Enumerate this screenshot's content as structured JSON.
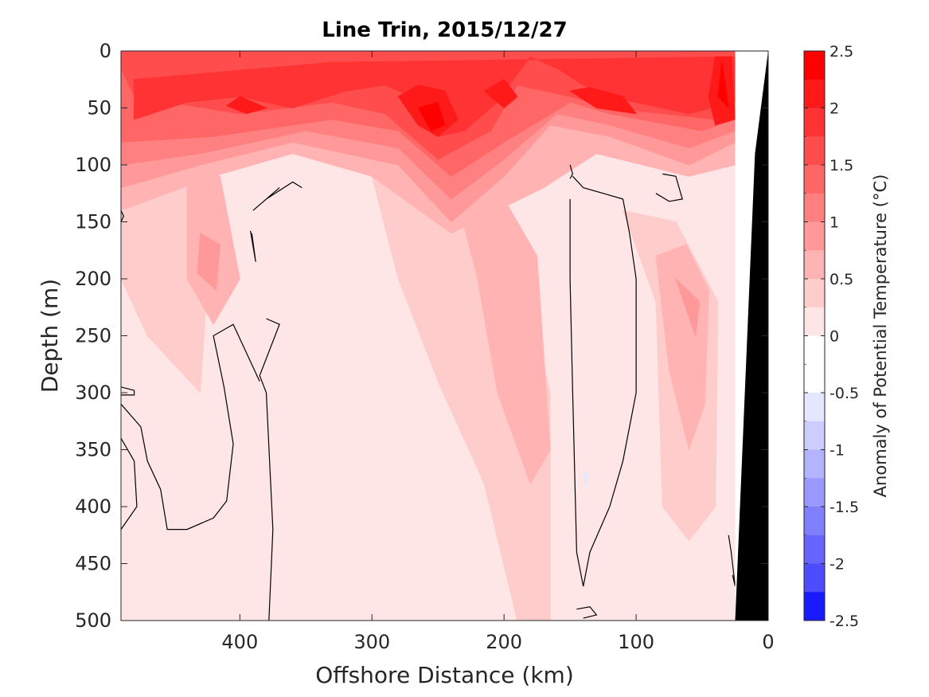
{
  "chart_data": {
    "type": "heatmap",
    "title": "Line Trin, 2015/12/27",
    "xlabel": "Offshore Distance (km)",
    "ylabel": "Depth (m)",
    "colorbar_label": "Anomaly of Potential Temperature (°C)",
    "xlim": [
      490,
      0
    ],
    "ylim": [
      0,
      500
    ],
    "x_ticks": [
      400,
      300,
      200,
      100,
      0
    ],
    "y_ticks": [
      0,
      50,
      100,
      150,
      200,
      250,
      300,
      350,
      400,
      450,
      500
    ],
    "clim": [
      -2.5,
      2.5
    ],
    "colorbar_ticks": [
      2.5,
      2,
      1.5,
      1,
      0.5,
      0,
      -0.5,
      -1,
      -1.5,
      -2,
      -2.5
    ],
    "colorbar_tick_labels": [
      "2.5",
      "2",
      "1.5",
      "1",
      "0.5",
      "0",
      "-0.5",
      "-1",
      "-1.5",
      "-2",
      "-2.5"
    ],
    "colorbar_levels": [
      {
        "lo": 2.25,
        "hi": 2.5,
        "color": "#ff0000"
      },
      {
        "lo": 2.0,
        "hi": 2.25,
        "color": "#ff1a1a"
      },
      {
        "lo": 1.75,
        "hi": 2.0,
        "color": "#ff3333"
      },
      {
        "lo": 1.5,
        "hi": 1.75,
        "color": "#ff4d4d"
      },
      {
        "lo": 1.25,
        "hi": 1.5,
        "color": "#ff6666"
      },
      {
        "lo": 1.0,
        "hi": 1.25,
        "color": "#ff8080"
      },
      {
        "lo": 0.75,
        "hi": 1.0,
        "color": "#ff9999"
      },
      {
        "lo": 0.5,
        "hi": 0.75,
        "color": "#ffb3b3"
      },
      {
        "lo": 0.25,
        "hi": 0.5,
        "color": "#ffcccc"
      },
      {
        "lo": 0.0,
        "hi": 0.25,
        "color": "#ffe6e6"
      },
      {
        "lo": -0.25,
        "hi": 0.0,
        "color": "#ffffff"
      },
      {
        "lo": -0.5,
        "hi": -0.25,
        "color": "#ffffff"
      },
      {
        "lo": -0.75,
        "hi": -0.5,
        "color": "#e6e6ff"
      },
      {
        "lo": -1.0,
        "hi": -0.75,
        "color": "#ccccff"
      },
      {
        "lo": -1.25,
        "hi": -1.0,
        "color": "#b3b3ff"
      },
      {
        "lo": -1.5,
        "hi": -1.25,
        "color": "#9999ff"
      },
      {
        "lo": -1.75,
        "hi": -1.5,
        "color": "#8080ff"
      },
      {
        "lo": -2.0,
        "hi": -1.75,
        "color": "#6666ff"
      },
      {
        "lo": -2.25,
        "hi": -2.0,
        "color": "#4d4dff"
      },
      {
        "lo": -2.5,
        "hi": -2.25,
        "color": "#1a1aff"
      }
    ],
    "field_regions": [
      {
        "level": 0.1,
        "points": [
          [
            490,
            0
          ],
          [
            25,
            0
          ],
          [
            25,
            500
          ],
          [
            490,
            500
          ]
        ]
      },
      {
        "level": 0.1,
        "points": [
          [
            280,
            160
          ],
          [
            255,
            250
          ],
          [
            250,
            330
          ],
          [
            240,
            480
          ],
          [
            200,
            500
          ],
          [
            170,
            500
          ],
          [
            185,
            360
          ],
          [
            190,
            180
          ],
          [
            230,
            150
          ]
        ]
      },
      {
        "level": 0.1,
        "points": [
          [
            90,
            250
          ],
          [
            100,
            350
          ],
          [
            95,
            500
          ],
          [
            40,
            500
          ],
          [
            35,
            300
          ],
          [
            50,
            220
          ]
        ]
      },
      {
        "level": 0.35,
        "points": [
          [
            490,
            100
          ],
          [
            420,
            120
          ],
          [
            430,
            300
          ],
          [
            470,
            250
          ],
          [
            490,
            200
          ]
        ]
      },
      {
        "level": 0.35,
        "points": [
          [
            300,
            110
          ],
          [
            280,
            200
          ],
          [
            250,
            290
          ],
          [
            215,
            380
          ],
          [
            190,
            500
          ],
          [
            165,
            500
          ],
          [
            165,
            300
          ],
          [
            190,
            180
          ],
          [
            240,
            130
          ]
        ]
      },
      {
        "level": 0.35,
        "points": [
          [
            110,
            140
          ],
          [
            85,
            220
          ],
          [
            80,
            400
          ],
          [
            60,
            430
          ],
          [
            40,
            400
          ],
          [
            38,
            220
          ],
          [
            70,
            150
          ]
        ]
      },
      {
        "level": 0.6,
        "points": [
          [
            440,
            100
          ],
          [
            415,
            110
          ],
          [
            400,
            200
          ],
          [
            420,
            240
          ],
          [
            440,
            200
          ]
        ]
      },
      {
        "level": 0.6,
        "points": [
          [
            240,
            110
          ],
          [
            220,
            200
          ],
          [
            205,
            300
          ],
          [
            180,
            380
          ],
          [
            165,
            350
          ],
          [
            175,
            180
          ],
          [
            200,
            130
          ]
        ]
      },
      {
        "level": 0.6,
        "points": [
          [
            85,
            180
          ],
          [
            75,
            280
          ],
          [
            60,
            350
          ],
          [
            48,
            310
          ],
          [
            45,
            210
          ],
          [
            62,
            170
          ]
        ]
      },
      {
        "level": 0.85,
        "points": [
          [
            430,
            160
          ],
          [
            415,
            170
          ],
          [
            418,
            210
          ],
          [
            432,
            195
          ]
        ]
      },
      {
        "level": 0.85,
        "points": [
          [
            70,
            200
          ],
          [
            55,
            250
          ],
          [
            52,
            220
          ]
        ]
      },
      {
        "level": 0.6,
        "points": [
          [
            490,
            0
          ],
          [
            25,
            0
          ],
          [
            25,
            100
          ],
          [
            60,
            110
          ],
          [
            130,
            90
          ],
          [
            170,
            120
          ],
          [
            240,
            160
          ],
          [
            300,
            110
          ],
          [
            360,
            90
          ],
          [
            420,
            110
          ],
          [
            490,
            140
          ]
        ]
      },
      {
        "level": 0.85,
        "points": [
          [
            490,
            0
          ],
          [
            25,
            0
          ],
          [
            25,
            80
          ],
          [
            60,
            100
          ],
          [
            120,
            75
          ],
          [
            165,
            65
          ],
          [
            200,
            110
          ],
          [
            240,
            150
          ],
          [
            280,
            100
          ],
          [
            360,
            80
          ],
          [
            430,
            100
          ],
          [
            490,
            120
          ]
        ]
      },
      {
        "level": 1.1,
        "points": [
          [
            490,
            0
          ],
          [
            25,
            0
          ],
          [
            25,
            70
          ],
          [
            60,
            85
          ],
          [
            120,
            65
          ],
          [
            160,
            55
          ],
          [
            200,
            95
          ],
          [
            240,
            130
          ],
          [
            280,
            85
          ],
          [
            350,
            70
          ],
          [
            430,
            90
          ],
          [
            490,
            100
          ]
        ]
      },
      {
        "level": 1.35,
        "points": [
          [
            490,
            0
          ],
          [
            25,
            0
          ],
          [
            25,
            60
          ],
          [
            50,
            70
          ],
          [
            120,
            55
          ],
          [
            150,
            45
          ],
          [
            200,
            80
          ],
          [
            240,
            110
          ],
          [
            280,
            70
          ],
          [
            330,
            60
          ],
          [
            420,
            75
          ],
          [
            490,
            80
          ]
        ]
      },
      {
        "level": 1.6,
        "points": [
          [
            490,
            15
          ],
          [
            480,
            40
          ],
          [
            400,
            55
          ],
          [
            330,
            45
          ],
          [
            290,
            55
          ],
          [
            250,
            95
          ],
          [
            210,
            70
          ],
          [
            190,
            30
          ],
          [
            150,
            40
          ],
          [
            120,
            50
          ],
          [
            40,
            60
          ],
          [
            25,
            15
          ],
          [
            25,
            0
          ],
          [
            490,
            0
          ]
        ]
      },
      {
        "level": 1.6,
        "points": [
          [
            490,
            0
          ],
          [
            25,
            0
          ],
          [
            25,
            5
          ],
          [
            490,
            5
          ]
        ]
      },
      {
        "level": 1.85,
        "points": [
          [
            480,
            60
          ],
          [
            440,
            45
          ],
          [
            400,
            40
          ],
          [
            360,
            50
          ],
          [
            320,
            35
          ],
          [
            290,
            30
          ],
          [
            270,
            40
          ],
          [
            250,
            75
          ],
          [
            230,
            70
          ],
          [
            205,
            45
          ],
          [
            190,
            20
          ],
          [
            180,
            5
          ],
          [
            160,
            15
          ],
          [
            140,
            30
          ],
          [
            120,
            40
          ],
          [
            60,
            55
          ],
          [
            25,
            45
          ],
          [
            25,
            5
          ],
          [
            200,
            8
          ],
          [
            330,
            10
          ],
          [
            480,
            25
          ]
        ]
      },
      {
        "level": 2.1,
        "points": [
          [
            280,
            40
          ],
          [
            265,
            65
          ],
          [
            250,
            75
          ],
          [
            235,
            60
          ],
          [
            245,
            35
          ],
          [
            265,
            30
          ]
        ]
      },
      {
        "level": 2.1,
        "points": [
          [
            215,
            35
          ],
          [
            200,
            50
          ],
          [
            190,
            40
          ],
          [
            200,
            25
          ]
        ]
      },
      {
        "level": 2.1,
        "points": [
          [
            150,
            35
          ],
          [
            130,
            50
          ],
          [
            100,
            55
          ],
          [
            110,
            40
          ],
          [
            135,
            32
          ]
        ]
      },
      {
        "level": 2.1,
        "points": [
          [
            40,
            5
          ],
          [
            28,
            5
          ],
          [
            25,
            60
          ],
          [
            40,
            65
          ],
          [
            45,
            40
          ]
        ]
      },
      {
        "level": 2.1,
        "points": [
          [
            400,
            40
          ],
          [
            380,
            50
          ],
          [
            395,
            55
          ],
          [
            410,
            48
          ]
        ]
      },
      {
        "level": 2.35,
        "points": [
          [
            265,
            50
          ],
          [
            255,
            70
          ],
          [
            245,
            65
          ],
          [
            250,
            45
          ]
        ]
      },
      {
        "level": 2.35,
        "points": [
          [
            35,
            10
          ],
          [
            30,
            50
          ],
          [
            38,
            40
          ]
        ]
      },
      {
        "level": -0.6,
        "points": [
          [
            140,
            370
          ],
          [
            138,
            382
          ],
          [
            136,
            372
          ]
        ]
      }
    ],
    "zero_contours": [
      [
        [
          370,
          120
        ],
        [
          390,
          140
        ],
        [
          380,
          130
        ],
        [
          360,
          115
        ],
        [
          353,
          120
        ]
      ],
      [
        [
          392,
          158
        ],
        [
          388,
          185
        ],
        [
          391,
          160
        ]
      ],
      [
        [
          380,
          235
        ],
        [
          370,
          240
        ],
        [
          385,
          285
        ],
        [
          380,
          300
        ],
        [
          375,
          420
        ],
        [
          378,
          500
        ]
      ],
      [
        [
          490,
          310
        ],
        [
          475,
          330
        ],
        [
          470,
          360
        ],
        [
          460,
          385
        ],
        [
          455,
          420
        ],
        [
          440,
          420
        ],
        [
          420,
          410
        ],
        [
          410,
          395
        ],
        [
          405,
          345
        ],
        [
          412,
          295
        ],
        [
          420,
          250
        ],
        [
          405,
          240
        ],
        [
          395,
          265
        ],
        [
          385,
          290
        ]
      ],
      [
        [
          490,
          340
        ],
        [
          480,
          360
        ],
        [
          478,
          400
        ],
        [
          490,
          420
        ]
      ],
      [
        [
          490,
          295
        ],
        [
          480,
          298
        ],
        [
          480,
          302
        ],
        [
          490,
          302
        ]
      ],
      [
        [
          490,
          150
        ],
        [
          488,
          145
        ],
        [
          490,
          140
        ]
      ],
      [
        [
          150,
          100
        ],
        [
          148,
          108
        ],
        [
          150,
          112
        ]
      ],
      [
        [
          148,
          110
        ],
        [
          140,
          120
        ],
        [
          110,
          130
        ],
        [
          105,
          160
        ],
        [
          100,
          200
        ],
        [
          100,
          300
        ],
        [
          110,
          360
        ],
        [
          120,
          400
        ],
        [
          135,
          440
        ],
        [
          140,
          470
        ],
        [
          145,
          440
        ],
        [
          148,
          300
        ],
        [
          150,
          200
        ],
        [
          150,
          130
        ]
      ],
      [
        [
          80,
          108
        ],
        [
          70,
          110
        ],
        [
          65,
          130
        ],
        [
          75,
          132
        ],
        [
          85,
          125
        ]
      ],
      [
        [
          145,
          490
        ],
        [
          135,
          488
        ],
        [
          130,
          495
        ],
        [
          140,
          498
        ]
      ],
      [
        [
          30,
          425
        ],
        [
          28,
          440
        ],
        [
          25,
          470
        ],
        [
          27,
          460
        ]
      ]
    ],
    "land_fill": [
      [
        0,
        0
      ],
      [
        25,
        0
      ],
      [
        25,
        500
      ],
      [
        0,
        500
      ]
    ],
    "land_bathymetry": [
      [
        0,
        0
      ],
      [
        10,
        90
      ],
      [
        25,
        500
      ],
      [
        0,
        500
      ]
    ]
  }
}
